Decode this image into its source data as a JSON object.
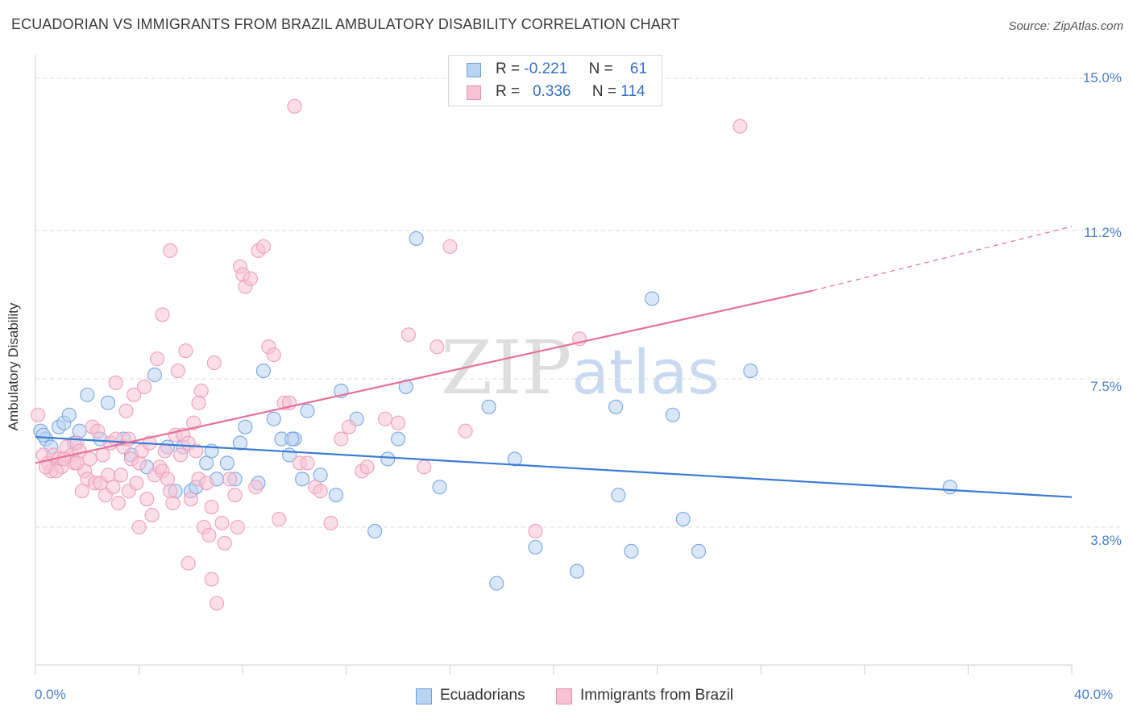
{
  "title": "ECUADORIAN VS IMMIGRANTS FROM BRAZIL AMBULATORY DISABILITY CORRELATION CHART",
  "source": "Source: ZipAtlas.com",
  "watermark": "ZIPatlas",
  "colors": {
    "blue": "#3a7bd5",
    "blue_fill": "#b9d3f3",
    "pink": "#e8709a",
    "pink_fill": "#f7c3d4",
    "axis_label": "#4a7fcf",
    "grid": "#dddddd"
  },
  "legend_top": [
    {
      "r_label": "R =",
      "r_value": "-0.221",
      "n_label": "N =",
      "n_value": "61"
    },
    {
      "r_label": "R =",
      "r_value": "0.336",
      "n_label": "N =",
      "n_value": "114"
    }
  ],
  "legend_bottom": [
    "Ecuadorians",
    "Immigrants from Brazil"
  ],
  "chart_data": {
    "type": "scatter",
    "title": "ECUADORIAN VS IMMIGRANTS FROM BRAZIL AMBULATORY DISABILITY CORRELATION CHART",
    "xlabel": "",
    "ylabel": "Ambulatory Disability",
    "xlim": [
      0,
      40
    ],
    "ylim": [
      0,
      16
    ],
    "x_tick_labels": [
      "0.0%",
      "40.0%"
    ],
    "y_ticks": [
      3.8,
      7.5,
      11.2,
      15.0
    ],
    "y_tick_labels": [
      "3.8%",
      "7.5%",
      "11.2%",
      "15.0%"
    ],
    "grid": "horizontal dashed",
    "legend_position": "top-center and bottom-center",
    "series": [
      {
        "name": "Ecuadorians",
        "color": "#3a7bd5",
        "r": -0.221,
        "n": 61,
        "trend": {
          "x": [
            0,
            40
          ],
          "y": [
            6.05,
            4.55
          ],
          "dashed_from": null
        },
        "points": [
          [
            0.2,
            6.2
          ],
          [
            0.4,
            6.0
          ],
          [
            0.6,
            5.8
          ],
          [
            0.9,
            6.3
          ],
          [
            1.1,
            6.4
          ],
          [
            1.5,
            5.9
          ],
          [
            1.7,
            6.2
          ],
          [
            2.0,
            7.1
          ],
          [
            2.5,
            6.0
          ],
          [
            2.8,
            6.9
          ],
          [
            3.4,
            6.0
          ],
          [
            3.7,
            5.6
          ],
          [
            4.3,
            5.3
          ],
          [
            4.6,
            7.6
          ],
          [
            5.1,
            5.8
          ],
          [
            5.4,
            4.7
          ],
          [
            6.0,
            4.7
          ],
          [
            6.2,
            4.8
          ],
          [
            6.6,
            5.4
          ],
          [
            6.8,
            5.7
          ],
          [
            7.0,
            5.0
          ],
          [
            7.4,
            5.4
          ],
          [
            7.7,
            5.0
          ],
          [
            7.9,
            5.9
          ],
          [
            8.1,
            6.3
          ],
          [
            8.6,
            4.9
          ],
          [
            8.8,
            7.7
          ],
          [
            9.2,
            6.5
          ],
          [
            9.5,
            6.0
          ],
          [
            9.8,
            5.6
          ],
          [
            10.0,
            6.0
          ],
          [
            10.3,
            5.0
          ],
          [
            10.5,
            6.7
          ],
          [
            11.0,
            5.1
          ],
          [
            11.6,
            4.6
          ],
          [
            11.8,
            7.2
          ],
          [
            12.4,
            6.5
          ],
          [
            13.1,
            3.7
          ],
          [
            13.6,
            5.5
          ],
          [
            14.0,
            6.0
          ],
          [
            14.3,
            7.3
          ],
          [
            14.7,
            11.0
          ],
          [
            15.6,
            4.8
          ],
          [
            17.5,
            6.8
          ],
          [
            17.8,
            2.4
          ],
          [
            18.5,
            5.5
          ],
          [
            19.3,
            3.3
          ],
          [
            20.9,
            2.7
          ],
          [
            22.4,
            6.8
          ],
          [
            22.5,
            4.6
          ],
          [
            23.0,
            3.2
          ],
          [
            23.8,
            9.5
          ],
          [
            24.6,
            6.6
          ],
          [
            25.0,
            4.0
          ],
          [
            25.6,
            3.2
          ],
          [
            27.6,
            7.7
          ],
          [
            35.3,
            4.8
          ],
          [
            0.3,
            6.1
          ],
          [
            1.3,
            6.6
          ],
          [
            9.9,
            6.0
          ],
          [
            5.7,
            5.8
          ]
        ]
      },
      {
        "name": "Immigrants from Brazil",
        "color": "#e8709a",
        "r": 0.336,
        "n": 114,
        "trend": {
          "x": [
            0,
            30
          ],
          "y": [
            5.4,
            9.7
          ],
          "dashed_to": [
            40,
            11.3
          ]
        },
        "points": [
          [
            0.1,
            6.6
          ],
          [
            0.3,
            5.6
          ],
          [
            0.5,
            5.4
          ],
          [
            0.6,
            5.2
          ],
          [
            0.7,
            5.6
          ],
          [
            0.9,
            5.5
          ],
          [
            1.0,
            5.3
          ],
          [
            1.2,
            5.8
          ],
          [
            1.4,
            5.6
          ],
          [
            1.5,
            5.4
          ],
          [
            1.6,
            5.9
          ],
          [
            1.7,
            5.7
          ],
          [
            1.9,
            5.2
          ],
          [
            2.0,
            5.0
          ],
          [
            2.2,
            6.3
          ],
          [
            2.3,
            4.9
          ],
          [
            2.4,
            6.2
          ],
          [
            2.6,
            5.6
          ],
          [
            2.7,
            4.6
          ],
          [
            2.9,
            5.9
          ],
          [
            3.0,
            4.8
          ],
          [
            3.1,
            7.4
          ],
          [
            3.2,
            4.4
          ],
          [
            3.3,
            5.1
          ],
          [
            3.4,
            5.8
          ],
          [
            3.5,
            6.7
          ],
          [
            3.6,
            4.7
          ],
          [
            3.7,
            5.5
          ],
          [
            3.9,
            4.9
          ],
          [
            4.0,
            5.4
          ],
          [
            4.1,
            5.7
          ],
          [
            4.2,
            7.3
          ],
          [
            4.3,
            4.5
          ],
          [
            4.4,
            5.9
          ],
          [
            4.5,
            4.1
          ],
          [
            4.6,
            5.1
          ],
          [
            4.7,
            8.0
          ],
          [
            4.8,
            5.3
          ],
          [
            4.9,
            5.2
          ],
          [
            5.0,
            5.7
          ],
          [
            5.1,
            5.0
          ],
          [
            5.2,
            4.7
          ],
          [
            5.3,
            4.4
          ],
          [
            5.4,
            6.1
          ],
          [
            5.5,
            7.7
          ],
          [
            5.6,
            5.6
          ],
          [
            5.7,
            6.1
          ],
          [
            5.8,
            8.2
          ],
          [
            5.9,
            5.9
          ],
          [
            6.0,
            4.5
          ],
          [
            6.1,
            6.4
          ],
          [
            6.2,
            5.7
          ],
          [
            6.3,
            5.0
          ],
          [
            6.4,
            7.2
          ],
          [
            6.5,
            3.8
          ],
          [
            6.6,
            4.9
          ],
          [
            6.7,
            3.6
          ],
          [
            6.8,
            2.5
          ],
          [
            6.9,
            7.9
          ],
          [
            7.0,
            1.9
          ],
          [
            7.2,
            3.9
          ],
          [
            7.5,
            5.0
          ],
          [
            7.7,
            4.6
          ],
          [
            7.8,
            3.8
          ],
          [
            7.9,
            10.3
          ],
          [
            8.0,
            10.1
          ],
          [
            8.1,
            9.8
          ],
          [
            8.3,
            10.0
          ],
          [
            8.5,
            4.8
          ],
          [
            8.6,
            10.7
          ],
          [
            8.8,
            10.8
          ],
          [
            9.0,
            8.3
          ],
          [
            9.2,
            8.1
          ],
          [
            9.4,
            4.0
          ],
          [
            9.6,
            6.9
          ],
          [
            9.8,
            6.9
          ],
          [
            10.0,
            14.3
          ],
          [
            10.2,
            5.4
          ],
          [
            10.5,
            5.4
          ],
          [
            10.8,
            4.8
          ],
          [
            11.0,
            4.7
          ],
          [
            11.4,
            3.9
          ],
          [
            11.8,
            6.0
          ],
          [
            12.1,
            6.3
          ],
          [
            12.6,
            5.2
          ],
          [
            12.8,
            5.3
          ],
          [
            13.5,
            6.5
          ],
          [
            14.0,
            6.4
          ],
          [
            14.4,
            8.6
          ],
          [
            15.0,
            5.3
          ],
          [
            15.5,
            8.3
          ],
          [
            16.0,
            10.8
          ],
          [
            16.6,
            6.2
          ],
          [
            19.3,
            3.7
          ],
          [
            21.0,
            8.5
          ],
          [
            27.2,
            13.8
          ],
          [
            3.8,
            7.1
          ],
          [
            2.1,
            5.5
          ],
          [
            1.8,
            4.7
          ],
          [
            0.8,
            5.2
          ],
          [
            6.8,
            4.3
          ],
          [
            7.3,
            3.4
          ],
          [
            5.9,
            2.9
          ],
          [
            4.9,
            9.1
          ],
          [
            4.0,
            3.8
          ],
          [
            3.1,
            6.0
          ],
          [
            2.5,
            4.9
          ],
          [
            1.1,
            5.5
          ],
          [
            0.4,
            5.3
          ],
          [
            5.2,
            10.7
          ],
          [
            6.3,
            6.9
          ],
          [
            3.6,
            6.0
          ],
          [
            2.8,
            5.1
          ],
          [
            1.6,
            5.4
          ]
        ]
      }
    ]
  },
  "y_axis_title": "Ambulatory Disability",
  "y_tick_labels": [
    "15.0%",
    "11.2%",
    "7.5%",
    "3.8%"
  ],
  "x_tick_labels": [
    "0.0%",
    "40.0%"
  ]
}
